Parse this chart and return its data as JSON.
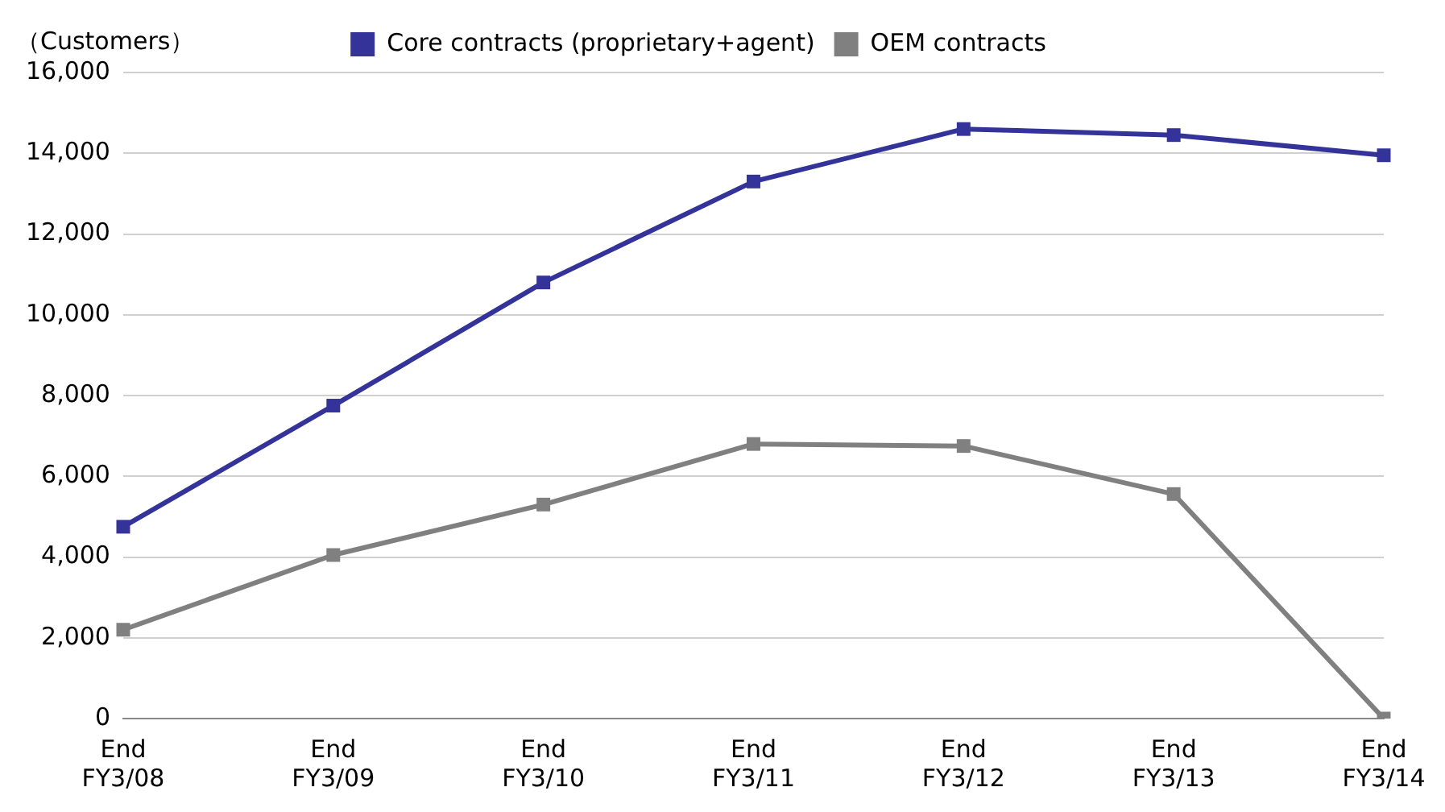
{
  "chart_data": {
    "type": "line",
    "ylabel": "（Customers）",
    "categories": [
      "End\nFY3/08",
      "End\nFY3/09",
      "End\nFY3/10",
      "End\nFY3/11",
      "End\nFY3/12",
      "End\nFY3/13",
      "End\nFY3/14"
    ],
    "series": [
      {
        "name": "Core contracts (proprietary+agent)",
        "color": "#333399",
        "values": [
          4750,
          7750,
          10800,
          13300,
          14600,
          14450,
          13950
        ]
      },
      {
        "name": "OEM contracts",
        "color": "#808080",
        "values": [
          2200,
          4050,
          5300,
          6800,
          6750,
          5560,
          0
        ]
      }
    ],
    "ylim": [
      0,
      16000
    ],
    "yticks": [
      0,
      {
        "value": 2000,
        "label": "2,000"
      },
      {
        "value": 4000,
        "label": "4,000"
      },
      {
        "value": 6000,
        "label": "6,000"
      },
      {
        "value": 8000,
        "label": "8,000"
      },
      {
        "value": 10000,
        "label": "10,000"
      },
      {
        "value": 12000,
        "label": "12,000"
      },
      {
        "value": 14000,
        "label": "14,000"
      },
      {
        "value": 16000,
        "label": "16,000"
      }
    ],
    "grid": "y",
    "legend": "top",
    "marker": "square",
    "line_style": "solid"
  }
}
